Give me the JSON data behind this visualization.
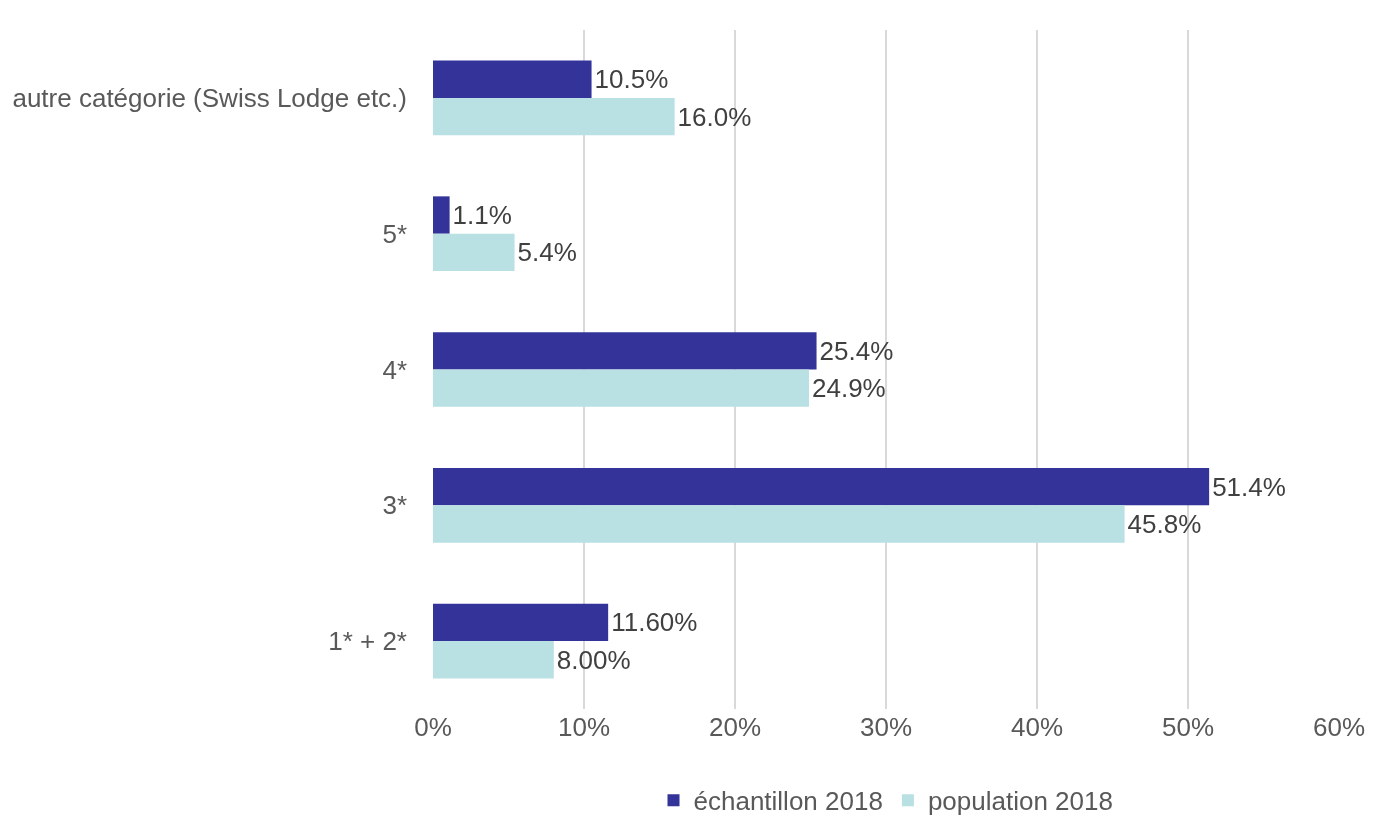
{
  "chart_data": {
    "type": "bar",
    "orientation": "horizontal",
    "categories": [
      "autre catégorie (Swiss Lodge etc.)",
      "5*",
      "4*",
      "3*",
      "1* + 2*"
    ],
    "series": [
      {
        "name": "échantillon 2018",
        "color": "#333399",
        "values": [
          10.5,
          1.1,
          25.4,
          51.4,
          11.6
        ],
        "value_labels": [
          "10.5%",
          "1.1%",
          "25.4%",
          "51.4%",
          "11.60%"
        ]
      },
      {
        "name": "population 2018",
        "color": "#b9e0e3",
        "values": [
          16.0,
          5.4,
          24.9,
          45.8,
          8.0
        ],
        "value_labels": [
          "16.0%",
          "5.4%",
          "24.9%",
          "45.8%",
          "8.00%"
        ]
      }
    ],
    "xlim": [
      0,
      60
    ],
    "xticks": [
      {
        "value": 0,
        "label": "0%"
      },
      {
        "value": 10,
        "label": "10%"
      },
      {
        "value": 20,
        "label": "20%"
      },
      {
        "value": 30,
        "label": "30%"
      },
      {
        "value": 40,
        "label": "40%"
      },
      {
        "value": 50,
        "label": "50%"
      },
      {
        "value": 60,
        "label": "60%"
      }
    ],
    "grid": "x",
    "legend": "bottom"
  }
}
